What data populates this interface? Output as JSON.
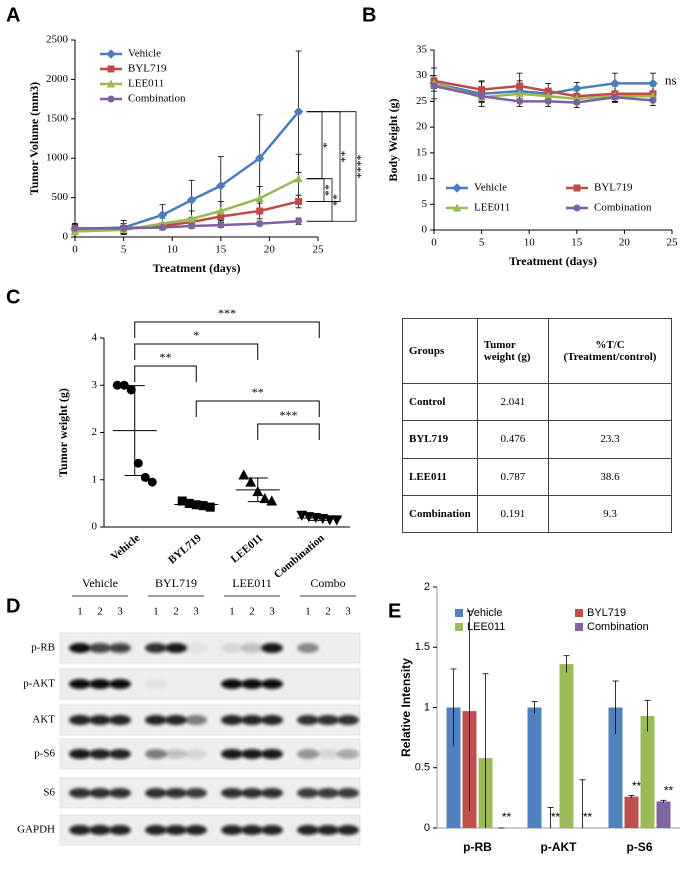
{
  "panels": [
    "A",
    "B",
    "C",
    "D",
    "E"
  ],
  "chart_data": [
    {
      "type": "line",
      "xlabel": "Treatment (days)",
      "ylabel": "Tumor Volume (mm3)",
      "x": [
        0,
        5,
        9,
        12,
        15,
        19,
        23
      ],
      "xlim": [
        0,
        25
      ],
      "xticks": [
        0,
        5,
        10,
        15,
        20,
        25
      ],
      "ylim": [
        0,
        2500
      ],
      "yticks": [
        0,
        500,
        1000,
        1500,
        2000,
        2500
      ],
      "legend": "upper left",
      "series": [
        {
          "name": "Vehicle",
          "color": "#4a7ebb",
          "marker": "diamond",
          "values": [
            100,
            120,
            280,
            470,
            650,
            1000,
            1590
          ],
          "errors": [
            70,
            90,
            130,
            250,
            370,
            550,
            770
          ]
        },
        {
          "name": "BYL719",
          "color": "#be4b48",
          "marker": "square",
          "values": [
            110,
            110,
            140,
            190,
            260,
            330,
            450
          ],
          "errors": [
            50,
            60,
            40,
            60,
            70,
            100,
            80
          ]
        },
        {
          "name": "LEE011",
          "color": "#98b954",
          "marker": "triangle",
          "values": [
            70,
            90,
            170,
            230,
            330,
            490,
            740
          ],
          "errors": [
            40,
            50,
            70,
            100,
            120,
            150,
            310
          ]
        },
        {
          "name": "Combination",
          "color": "#7d60a0",
          "marker": "circle",
          "values": [
            110,
            110,
            120,
            140,
            150,
            170,
            200
          ],
          "errors": [
            30,
            30,
            30,
            30,
            30,
            30,
            40
          ]
        }
      ],
      "annotations": [
        "*",
        "**",
        "****",
        "**",
        "**"
      ]
    },
    {
      "type": "line",
      "xlabel": "Treatment (days)",
      "ylabel": "Body Weight (g)",
      "x": [
        0,
        5,
        9,
        12,
        15,
        19,
        23
      ],
      "xlim": [
        0,
        25
      ],
      "xticks": [
        0,
        5,
        10,
        15,
        20,
        25
      ],
      "ylim": [
        0,
        35
      ],
      "yticks": [
        0,
        5,
        10,
        15,
        20,
        25,
        30,
        35
      ],
      "legend": "lower center",
      "series": [
        {
          "name": "Vehicle",
          "color": "#4a7ebb",
          "marker": "diamond",
          "values": [
            28.5,
            26.5,
            27,
            26.5,
            27.5,
            28.5,
            28.5
          ],
          "errors": [
            3,
            2.5,
            2,
            1,
            1.2,
            2,
            2
          ]
        },
        {
          "name": "BYL719",
          "color": "#be4b48",
          "marker": "square",
          "values": [
            29,
            27.3,
            28,
            27,
            26,
            26.5,
            26.5
          ],
          "errors": [
            1,
            1.5,
            2.5,
            1.5,
            1.5,
            1.5,
            1.5
          ]
        },
        {
          "name": "LEE011",
          "color": "#98b954",
          "marker": "triangle",
          "values": [
            28.5,
            25.8,
            26.5,
            26,
            25.5,
            26,
            26
          ],
          "errors": [
            1,
            1,
            1,
            1,
            1,
            1,
            1
          ]
        },
        {
          "name": "Combination",
          "color": "#7d60a0",
          "marker": "circle",
          "values": [
            28,
            26,
            25,
            25,
            24.8,
            25.8,
            25.2
          ],
          "errors": [
            1,
            1,
            1,
            1,
            1,
            1,
            1
          ]
        }
      ],
      "annotations": [
        "ns"
      ]
    },
    {
      "type": "strip",
      "ylabel": "Tumor weight (g)",
      "categories": [
        "Vehicle",
        "BYL719",
        "LEE011",
        "Combination"
      ],
      "values": [
        [
          3.0,
          3.0,
          2.9,
          1.35,
          1.05,
          0.95
        ],
        [
          0.55,
          0.5,
          0.47,
          0.45,
          0.42
        ],
        [
          1.1,
          0.95,
          0.75,
          0.6,
          0.55
        ],
        [
          0.25,
          0.22,
          0.2,
          0.18,
          0.15,
          0.15
        ]
      ],
      "means": [
        2.041,
        0.476,
        0.787,
        0.191
      ],
      "sd": [
        0.95,
        0.06,
        0.25,
        0.05
      ],
      "markers": [
        "circle",
        "square",
        "triangle",
        "inverted-triangle"
      ],
      "color": "#000000",
      "ylim": [
        0,
        4
      ],
      "yticks": [
        0,
        1,
        2,
        3,
        4
      ],
      "annotations": [
        "***",
        "*",
        "**",
        "**",
        "***"
      ]
    },
    {
      "type": "bar",
      "ylabel": "Relative Intensity",
      "categories": [
        "p-RB",
        "p-AKT",
        "p-S6"
      ],
      "ylim": [
        0,
        2
      ],
      "yticks": [
        0,
        0.5,
        1,
        1.5,
        2
      ],
      "legend": "top",
      "series": [
        {
          "name": "Vehicle",
          "color": "#4f81bd",
          "values": [
            1,
            1,
            1
          ],
          "errors": [
            0.32,
            0.05,
            0.22
          ],
          "significance": [
            null,
            null,
            null
          ]
        },
        {
          "name": "BYL719",
          "color": "#c0504d",
          "values": [
            0.97,
            0,
            0.26
          ],
          "errors": [
            0.83,
            0.17,
            0.01
          ],
          "significance": [
            null,
            "**",
            "**"
          ]
        },
        {
          "name": "LEE011",
          "color": "#9bbb59",
          "values": [
            0.58,
            1.36,
            0.93
          ],
          "errors": [
            0.7,
            0.07,
            0.13
          ],
          "significance": [
            null,
            null,
            null
          ]
        },
        {
          "name": "Combination",
          "color": "#8064a2",
          "values": [
            0,
            0,
            0.22
          ],
          "errors": [
            0,
            0.4,
            0.01
          ],
          "significance": [
            "**",
            "**",
            "**"
          ]
        }
      ]
    }
  ],
  "table": {
    "header": [
      "Groups",
      "Tumor weight (g)",
      "%T/C (Treatment/control)"
    ],
    "rows": [
      [
        "Control",
        "2.041"
      ],
      [
        "BYL719",
        "0.476",
        "23.3"
      ],
      [
        "LEE011",
        "0.787",
        "38.6"
      ],
      [
        "Combination",
        "0.191",
        "9.3"
      ]
    ]
  },
  "blot": {
    "groups": [
      "Vehicle",
      "BYL719",
      "LEE011",
      "Combo"
    ],
    "lanes": [
      "1",
      "2",
      "3"
    ],
    "rows": [
      "p-RB",
      "p-AKT",
      "AKT",
      "p-S6",
      "S6",
      "GAPDH"
    ]
  }
}
